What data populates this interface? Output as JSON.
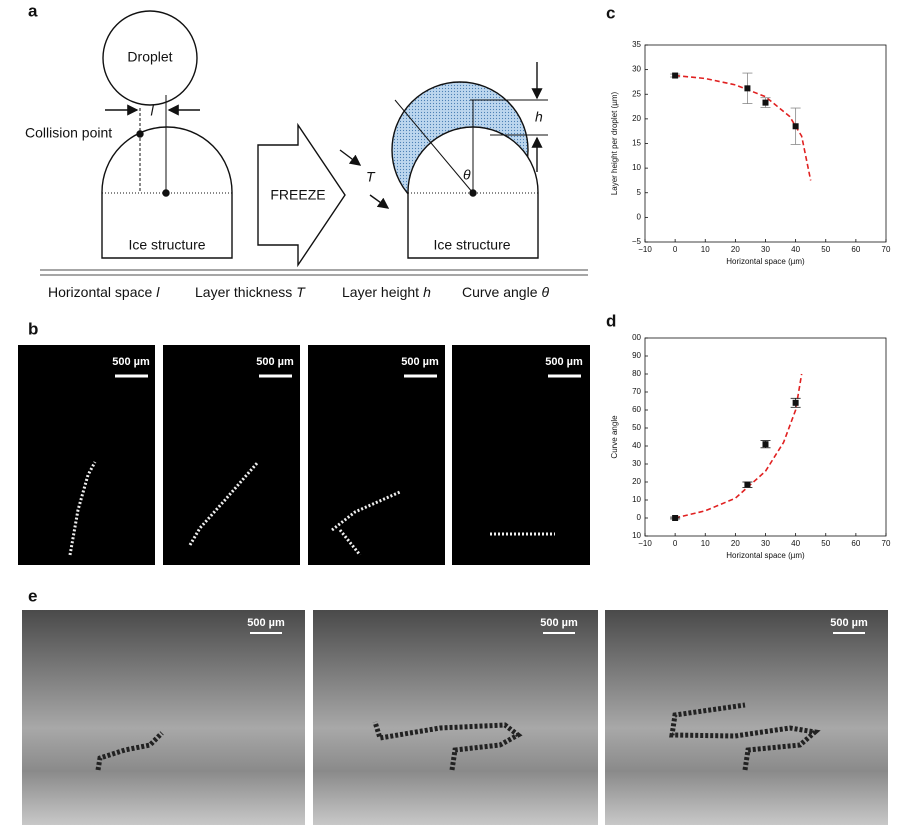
{
  "figure": {
    "panel_labels": [
      "a",
      "b",
      "c",
      "d",
      "e"
    ],
    "diagram": {
      "droplet": "Droplet",
      "l_symbol": "l",
      "collision_point": "Collision point",
      "ice_left": "Ice structure",
      "freeze": "FREEZE",
      "T_symbol": "T",
      "h_symbol": "h",
      "theta_symbol": "θ",
      "ice_right": "Ice structure"
    },
    "captions": [
      {
        "text": "Horizontal space",
        "symbol": "l"
      },
      {
        "text": "Layer thickness",
        "symbol": "T"
      },
      {
        "text": "Layer height",
        "symbol": "h"
      },
      {
        "text": "Curve angle",
        "symbol": "θ"
      }
    ],
    "scale_bars": [
      "500 µm",
      "500 µm",
      "500 µm",
      "500 µm",
      "500 µm",
      "500 µm",
      "500 µm"
    ]
  },
  "chart_data": [
    {
      "type": "scatter",
      "x_label": "Horizontal space (µm)",
      "y_label": "Layer height per droplet (µm)",
      "xlim": [
        -10,
        70
      ],
      "xticks": [
        {
          "value": -10,
          "label": "−10"
        },
        0,
        10,
        20,
        30,
        40,
        50,
        60,
        70
      ],
      "ylim": [
        -5,
        35
      ],
      "yticks": [
        {
          "value": -5,
          "label": "−5"
        },
        0,
        5,
        10,
        15,
        20,
        25,
        30,
        35
      ],
      "series": [
        {
          "color": "#111111",
          "error_color": "#888888",
          "x": [
            0,
            24,
            30,
            40
          ],
          "values": [
            28.8,
            26.2,
            23.3,
            18.5
          ],
          "errors": [
            0.3,
            3.1,
            1.0,
            3.7
          ]
        }
      ],
      "fit": {
        "color": "#e02020",
        "x": [
          0,
          10,
          20,
          30,
          38,
          42,
          45
        ],
        "values": [
          28.8,
          28.2,
          26.9,
          24.5,
          20.5,
          16.5,
          7.5
        ]
      }
    },
    {
      "type": "scatter",
      "x_label": "Horizontal space (µm)",
      "y_label": "Curve angle",
      "xlim": [
        -10,
        70
      ],
      "xticks": [
        {
          "value": -10,
          "label": "−10"
        },
        0,
        10,
        20,
        30,
        40,
        50,
        60,
        70
      ],
      "ylim": [
        -10,
        100
      ],
      "yticks": [
        {
          "value": -10,
          "label": "10"
        },
        0,
        10,
        20,
        30,
        40,
        50,
        60,
        70,
        80,
        90,
        {
          "value": 100,
          "label": "00"
        }
      ],
      "series": [
        {
          "color": "#111111",
          "error_color": "#111111",
          "x": [
            0,
            24,
            30,
            40
          ],
          "values": [
            0,
            18.5,
            41,
            64
          ],
          "errors": [
            0.5,
            1.5,
            2,
            2.5
          ]
        }
      ],
      "fit": {
        "color": "#e02020",
        "x": [
          0,
          10,
          20,
          30,
          36,
          40,
          42
        ],
        "values": [
          0,
          4,
          11,
          26,
          42,
          60,
          80
        ]
      }
    }
  ]
}
